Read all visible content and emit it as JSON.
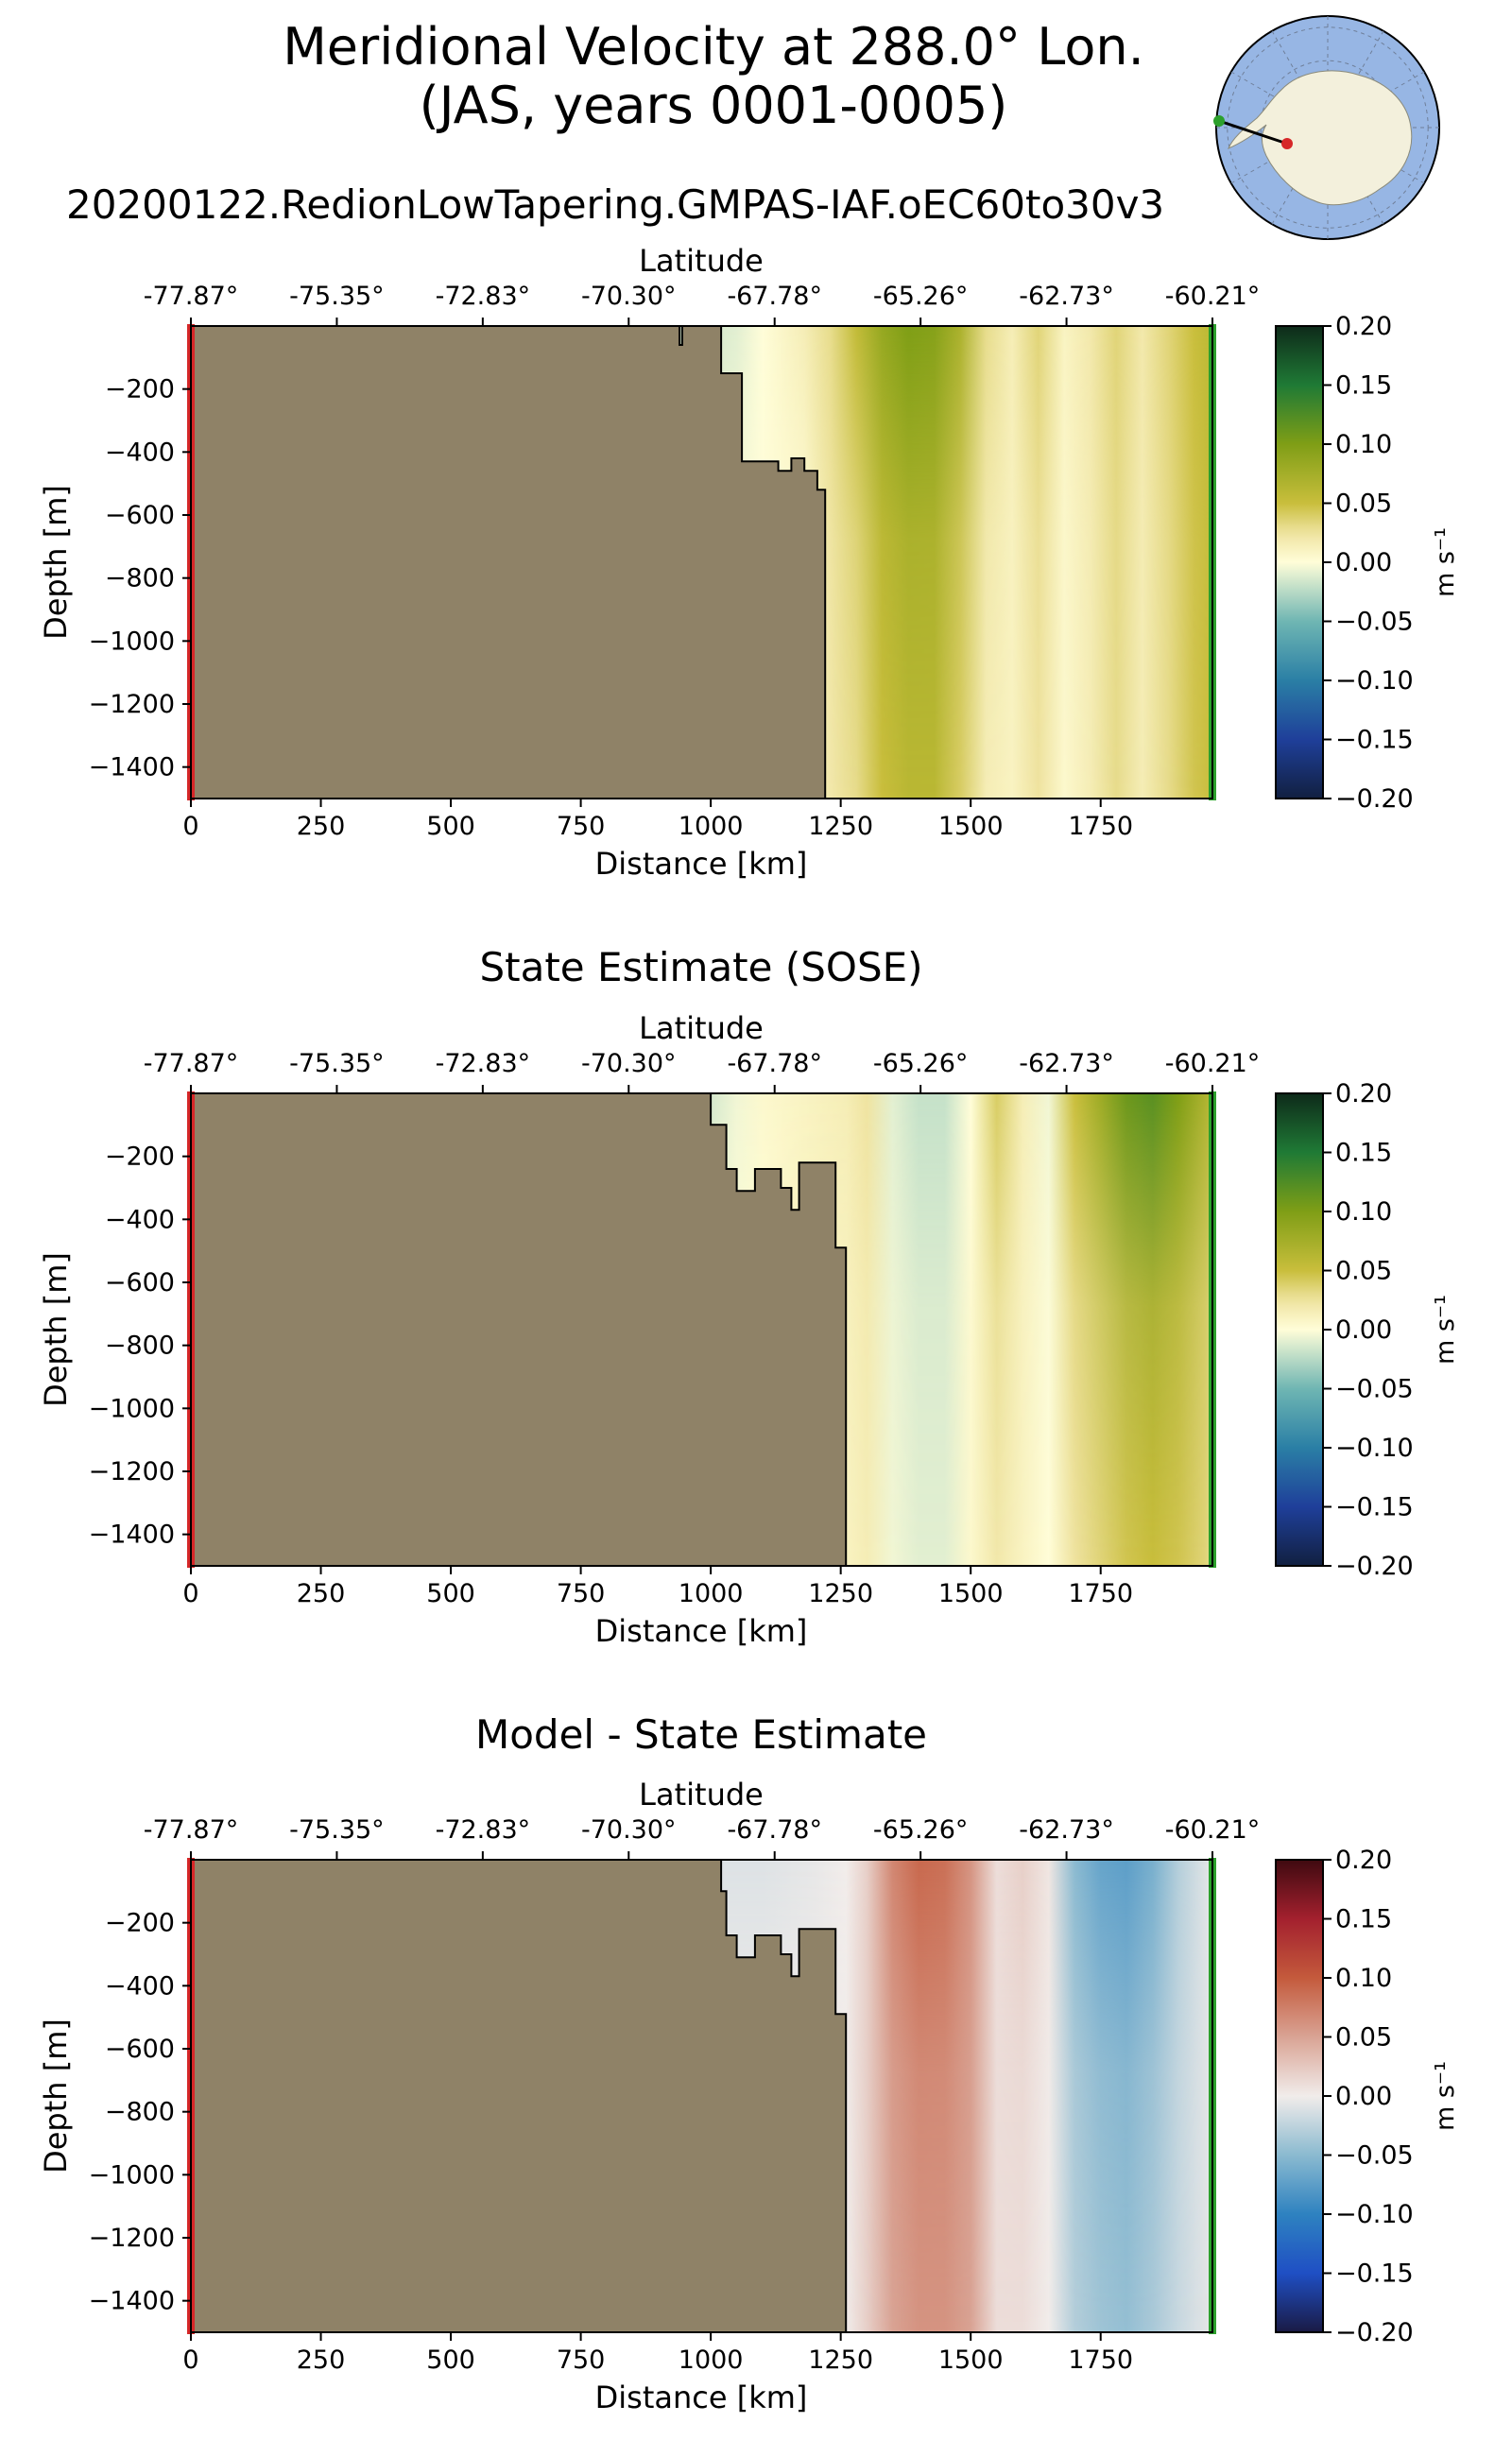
{
  "page": {
    "title_line1": "Meridional Velocity at 288.0° Lon.",
    "title_line2": "(JAS, years 0001-0005)",
    "subtitle": "20200122.RedionLowTapering.GMPAS-IAF.oEC60to30v3"
  },
  "inset_map": {
    "name": "Antarctica polar stereographic locator",
    "start_marker_color": "#d62728",
    "end_marker_color": "#2ca02c",
    "land_color": "#f3f0dc",
    "ocean_color": "#97b6e4"
  },
  "chart_data": [
    {
      "type": "heatmap",
      "title": "",
      "xlabel": "Distance [km]",
      "ylabel": "Depth [m]",
      "top_xlabel": "Latitude",
      "top_ticks": [
        "-77.87°",
        "-75.35°",
        "-72.83°",
        "-70.30°",
        "-67.78°",
        "-65.26°",
        "-62.73°",
        "-60.21°"
      ],
      "x_ticks": [
        "0",
        "250",
        "500",
        "750",
        "1000",
        "1250",
        "1500",
        "1750"
      ],
      "y_ticks": [
        "−200",
        "−400",
        "−600",
        "−800",
        "−1000",
        "−1200",
        "−1400"
      ],
      "xlim": [
        0,
        1965
      ],
      "ylim": [
        -1500,
        0
      ],
      "colorbar": {
        "label": "m s⁻¹",
        "ticks": [
          "0.20",
          "0.15",
          "0.10",
          "0.05",
          "0.00",
          "−0.05",
          "−0.10",
          "−0.15",
          "−0.20"
        ],
        "range": [
          -0.2,
          0.2
        ],
        "colormap": "delta"
      },
      "bathymetry": [
        [
          0,
          0
        ],
        [
          940,
          0
        ],
        [
          940,
          -60
        ],
        [
          945,
          -60
        ],
        [
          945,
          0
        ],
        [
          1020,
          0
        ],
        [
          1020,
          -150
        ],
        [
          1060,
          -150
        ],
        [
          1060,
          -430
        ],
        [
          1130,
          -430
        ],
        [
          1130,
          -460
        ],
        [
          1155,
          -460
        ],
        [
          1155,
          -420
        ],
        [
          1180,
          -420
        ],
        [
          1180,
          -460
        ],
        [
          1205,
          -460
        ],
        [
          1205,
          -520
        ],
        [
          1220,
          -520
        ],
        [
          1220,
          -1500
        ],
        [
          0,
          -1500
        ]
      ],
      "velocity_profile": {
        "distance": [
          1000,
          1050,
          1100,
          1180,
          1230,
          1280,
          1330,
          1380,
          1430,
          1480,
          1530,
          1580,
          1630,
          1680,
          1730,
          1780,
          1830,
          1880,
          1930,
          1965
        ],
        "surface": [
          -0.015,
          -0.01,
          0.0,
          0.015,
          0.03,
          0.055,
          0.085,
          0.1,
          0.095,
          0.07,
          0.03,
          0.015,
          0.035,
          0.01,
          0.02,
          0.035,
          0.02,
          0.035,
          0.05,
          0.06
        ],
        "deep": [
          0.0,
          0.0,
          0.0,
          0.0,
          0.02,
          0.03,
          0.05,
          0.06,
          0.06,
          0.04,
          0.015,
          0.01,
          0.025,
          0.005,
          0.015,
          0.03,
          0.015,
          0.03,
          0.045,
          0.05
        ]
      }
    },
    {
      "type": "heatmap",
      "title": "State Estimate (SOSE)",
      "xlabel": "Distance [km]",
      "ylabel": "Depth [m]",
      "top_xlabel": "Latitude",
      "top_ticks": [
        "-77.87°",
        "-75.35°",
        "-72.83°",
        "-70.30°",
        "-67.78°",
        "-65.26°",
        "-62.73°",
        "-60.21°"
      ],
      "x_ticks": [
        "0",
        "250",
        "500",
        "750",
        "1000",
        "1250",
        "1500",
        "1750"
      ],
      "y_ticks": [
        "−200",
        "−400",
        "−600",
        "−800",
        "−1000",
        "−1200",
        "−1400"
      ],
      "xlim": [
        0,
        1965
      ],
      "ylim": [
        -1500,
        0
      ],
      "colorbar": {
        "label": "m s⁻¹",
        "ticks": [
          "0.20",
          "0.15",
          "0.10",
          "0.05",
          "0.00",
          "−0.05",
          "−0.10",
          "−0.15",
          "−0.20"
        ],
        "range": [
          -0.2,
          0.2
        ],
        "colormap": "delta"
      },
      "bathymetry": [
        [
          0,
          0
        ],
        [
          1000,
          0
        ],
        [
          1000,
          -100
        ],
        [
          1030,
          -100
        ],
        [
          1030,
          -240
        ],
        [
          1050,
          -240
        ],
        [
          1050,
          -310
        ],
        [
          1085,
          -310
        ],
        [
          1085,
          -240
        ],
        [
          1135,
          -240
        ],
        [
          1135,
          -300
        ],
        [
          1155,
          -300
        ],
        [
          1155,
          -370
        ],
        [
          1170,
          -370
        ],
        [
          1170,
          -220
        ],
        [
          1240,
          -220
        ],
        [
          1240,
          -490
        ],
        [
          1260,
          -490
        ],
        [
          1260,
          -1500
        ],
        [
          0,
          -1500
        ]
      ],
      "velocity_profile": {
        "distance": [
          1000,
          1050,
          1100,
          1180,
          1260,
          1300,
          1350,
          1400,
          1450,
          1500,
          1550,
          1600,
          1650,
          1700,
          1750,
          1800,
          1850,
          1900,
          1950,
          1965
        ],
        "surface": [
          -0.015,
          -0.005,
          0.005,
          0.01,
          0.015,
          0.025,
          -0.01,
          -0.02,
          -0.02,
          0.0,
          0.04,
          0.015,
          -0.005,
          0.05,
          0.08,
          0.11,
          0.12,
          0.1,
          0.07,
          0.06
        ],
        "deep": [
          0.0,
          0.0,
          0.0,
          0.01,
          0.01,
          0.015,
          -0.005,
          -0.01,
          -0.01,
          0.005,
          0.02,
          0.01,
          0.0,
          0.025,
          0.035,
          0.045,
          0.05,
          0.045,
          0.035,
          0.03
        ]
      }
    },
    {
      "type": "heatmap",
      "title": "Model - State Estimate",
      "xlabel": "Distance [km]",
      "ylabel": "Depth [m]",
      "top_xlabel": "Latitude",
      "top_ticks": [
        "-77.87°",
        "-75.35°",
        "-72.83°",
        "-70.30°",
        "-67.78°",
        "-65.26°",
        "-62.73°",
        "-60.21°"
      ],
      "x_ticks": [
        "0",
        "250",
        "500",
        "750",
        "1000",
        "1250",
        "1500",
        "1750"
      ],
      "y_ticks": [
        "−200",
        "−400",
        "−600",
        "−800",
        "−1000",
        "−1200",
        "−1400"
      ],
      "xlim": [
        0,
        1965
      ],
      "ylim": [
        -1500,
        0
      ],
      "colorbar": {
        "label": "m s⁻¹",
        "ticks": [
          "0.20",
          "0.15",
          "0.10",
          "0.05",
          "0.00",
          "−0.05",
          "−0.10",
          "−0.15",
          "−0.20"
        ],
        "range": [
          -0.2,
          0.2
        ],
        "colormap": "balance"
      },
      "bathymetry": [
        [
          0,
          0
        ],
        [
          1020,
          0
        ],
        [
          1020,
          -100
        ],
        [
          1030,
          -100
        ],
        [
          1030,
          -240
        ],
        [
          1050,
          -240
        ],
        [
          1050,
          -310
        ],
        [
          1085,
          -310
        ],
        [
          1085,
          -240
        ],
        [
          1135,
          -240
        ],
        [
          1135,
          -300
        ],
        [
          1155,
          -300
        ],
        [
          1155,
          -370
        ],
        [
          1170,
          -370
        ],
        [
          1170,
          -220
        ],
        [
          1240,
          -220
        ],
        [
          1240,
          -490
        ],
        [
          1260,
          -490
        ],
        [
          1260,
          -1500
        ],
        [
          0,
          -1500
        ]
      ],
      "velocity_profile": {
        "distance": [
          1020,
          1100,
          1200,
          1260,
          1300,
          1350,
          1400,
          1450,
          1500,
          1550,
          1600,
          1650,
          1700,
          1750,
          1800,
          1850,
          1900,
          1965
        ],
        "surface": [
          -0.01,
          -0.01,
          -0.005,
          0.0,
          0.02,
          0.07,
          0.09,
          0.085,
          0.06,
          0.01,
          0.02,
          0.005,
          -0.05,
          -0.07,
          -0.075,
          -0.06,
          -0.03,
          -0.005
        ],
        "deep": [
          0.0,
          0.0,
          0.0,
          0.0,
          0.02,
          0.05,
          0.06,
          0.06,
          0.05,
          0.01,
          0.01,
          0.0,
          -0.03,
          -0.04,
          -0.045,
          -0.035,
          -0.02,
          -0.005
        ]
      }
    }
  ]
}
